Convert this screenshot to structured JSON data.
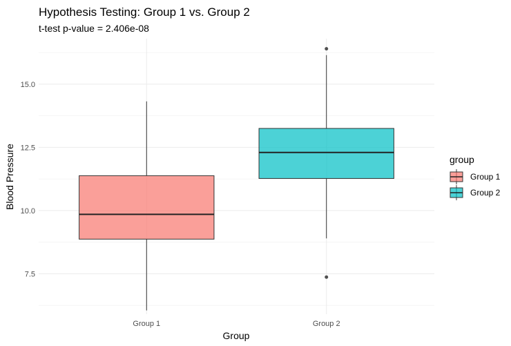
{
  "chart_data": {
    "type": "boxplot",
    "title": "Hypothesis Testing: Group 1 vs. Group 2",
    "subtitle": "t-test p-value = 2.406e-08",
    "xlabel": "Group",
    "ylabel": "Blood Pressure",
    "categories": [
      "Group 1",
      "Group 2"
    ],
    "ylim": [
      5.9,
      16.8
    ],
    "yticks": [
      7.5,
      10.0,
      12.5,
      15.0
    ],
    "ytick_labels": [
      "7.5",
      "10.0",
      "12.5",
      "15.0"
    ],
    "grid": true,
    "legend": {
      "title": "group",
      "position": "right",
      "entries": [
        {
          "label": "Group 1",
          "color": "#F8766D"
        },
        {
          "label": "Group 2",
          "color": "#00BFC4"
        }
      ]
    },
    "boxes": [
      {
        "group": "Group 1",
        "color": "#F8766D",
        "whisker_low": 6.05,
        "q1": 8.87,
        "median": 9.85,
        "q3": 11.38,
        "whisker_high": 14.32,
        "outliers": []
      },
      {
        "group": "Group 2",
        "color": "#00BFC4",
        "whisker_low": 8.9,
        "q1": 11.27,
        "median": 12.3,
        "q3": 13.25,
        "whisker_high": 16.15,
        "outliers": [
          16.4,
          7.37
        ]
      }
    ]
  }
}
